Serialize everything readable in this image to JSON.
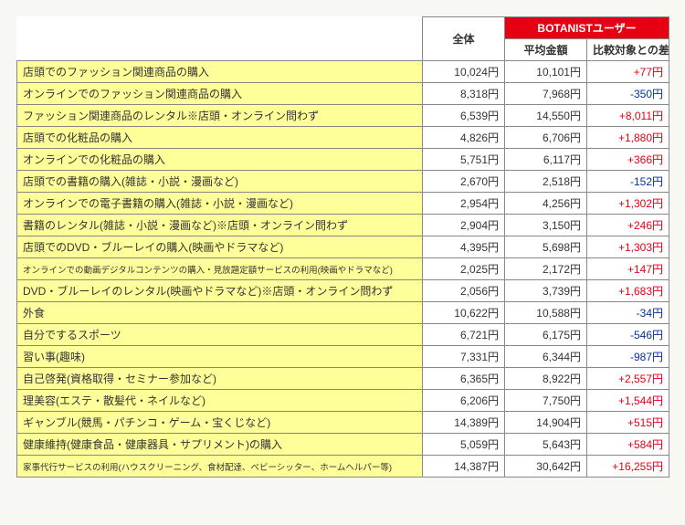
{
  "table": {
    "headers": {
      "corner": "",
      "zentai": "全体",
      "botanist_group": "BOTANISTユーザー",
      "botanist_avg": "平均金額",
      "botanist_diff": "比較対象との差"
    },
    "yen": "円",
    "rows": [
      {
        "label": "店頭でのファッション関連商品の購入",
        "small": false,
        "zentai": "10,024",
        "avg": "10,101",
        "diff": "+77",
        "sign": "pos"
      },
      {
        "label": "オンラインでのファッション関連商品の購入",
        "small": false,
        "zentai": "8,318",
        "avg": "7,968",
        "diff": "-350",
        "sign": "neg"
      },
      {
        "label": "ファッション関連商品のレンタル※店頭・オンライン問わず",
        "small": false,
        "zentai": "6,539",
        "avg": "14,550",
        "diff": "+8,011",
        "sign": "pos"
      },
      {
        "label": "店頭での化粧品の購入",
        "small": false,
        "zentai": "4,826",
        "avg": "6,706",
        "diff": "+1,880",
        "sign": "pos"
      },
      {
        "label": "オンラインでの化粧品の購入",
        "small": false,
        "zentai": "5,751",
        "avg": "6,117",
        "diff": "+366",
        "sign": "pos"
      },
      {
        "label": "店頭での書籍の購入(雑誌・小説・漫画など)",
        "small": false,
        "zentai": "2,670",
        "avg": "2,518",
        "diff": "-152",
        "sign": "neg"
      },
      {
        "label": "オンラインでの電子書籍の購入(雑誌・小説・漫画など)",
        "small": false,
        "zentai": "2,954",
        "avg": "4,256",
        "diff": "+1,302",
        "sign": "pos"
      },
      {
        "label": "書籍のレンタル(雑誌・小説・漫画など)※店頭・オンライン問わず",
        "small": false,
        "zentai": "2,904",
        "avg": "3,150",
        "diff": "+246",
        "sign": "pos"
      },
      {
        "label": "店頭でのDVD・ブルーレイの購入(映画やドラマなど)",
        "small": false,
        "zentai": "4,395",
        "avg": "5,698",
        "diff": "+1,303",
        "sign": "pos"
      },
      {
        "label": "オンラインでの動画デジタルコンテンツの購入・見放題定額サービスの利用(映画やドラマなど)",
        "small": true,
        "zentai": "2,025",
        "avg": "2,172",
        "diff": "+147",
        "sign": "pos"
      },
      {
        "label": "DVD・ブルーレイのレンタル(映画やドラマなど)※店頭・オンライン問わず",
        "small": false,
        "zentai": "2,056",
        "avg": "3,739",
        "diff": "+1,683",
        "sign": "pos"
      },
      {
        "label": "外食",
        "small": false,
        "zentai": "10,622",
        "avg": "10,588",
        "diff": "-34",
        "sign": "neg"
      },
      {
        "label": "自分でするスポーツ",
        "small": false,
        "zentai": "6,721",
        "avg": "6,175",
        "diff": "-546",
        "sign": "neg"
      },
      {
        "label": "習い事(趣味)",
        "small": false,
        "zentai": "7,331",
        "avg": "6,344",
        "diff": "-987",
        "sign": "neg"
      },
      {
        "label": "自己啓発(資格取得・セミナー参加など)",
        "small": false,
        "zentai": "6,365",
        "avg": "8,922",
        "diff": "+2,557",
        "sign": "pos"
      },
      {
        "label": "理美容(エステ・散髪代・ネイルなど)",
        "small": false,
        "zentai": "6,206",
        "avg": "7,750",
        "diff": "+1,544",
        "sign": "pos"
      },
      {
        "label": "ギャンブル(競馬・パチンコ・ゲーム・宝くじなど)",
        "small": false,
        "zentai": "14,389",
        "avg": "14,904",
        "diff": "+515",
        "sign": "pos"
      },
      {
        "label": "健康維持(健康食品・健康器具・サプリメント)の購入",
        "small": false,
        "zentai": "5,059",
        "avg": "5,643",
        "diff": "+584",
        "sign": "pos"
      },
      {
        "label": "家事代行サービスの利用(ハウスクリーニング、食材配達、ベビーシッター、ホームヘルパー等)",
        "small": true,
        "zentai": "14,387",
        "avg": "30,642",
        "diff": "+16,255",
        "sign": "pos"
      }
    ]
  }
}
